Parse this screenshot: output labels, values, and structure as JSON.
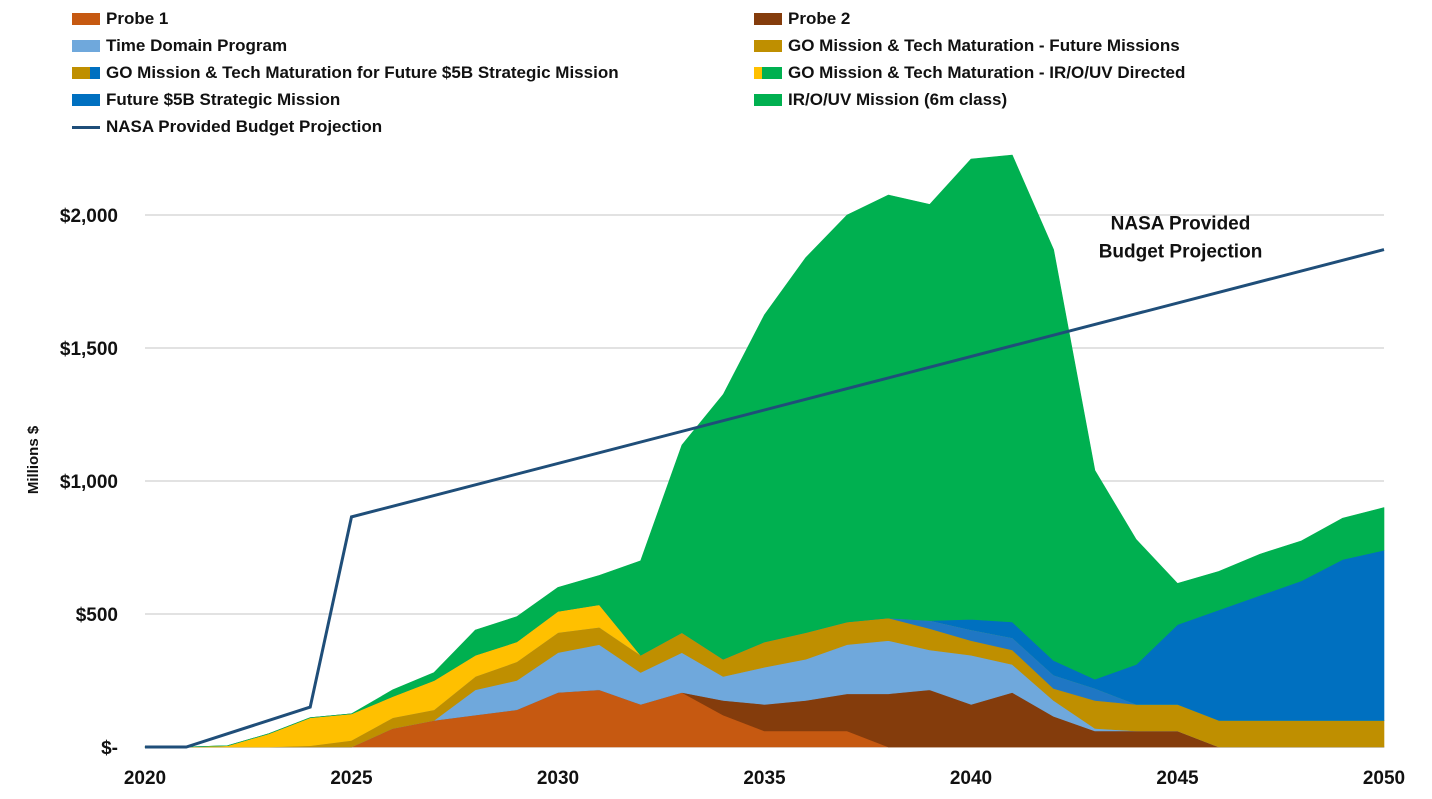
{
  "chart_data": {
    "type": "area",
    "stacked": true,
    "title": "",
    "xlabel": "",
    "ylabel": "Millions $",
    "xlim": [
      2020,
      2050
    ],
    "ylim": [
      0,
      2250
    ],
    "grid": true,
    "legend_position": "top",
    "x_ticks": [
      2020,
      2025,
      2030,
      2035,
      2040,
      2045,
      2050
    ],
    "x_tick_labels": [
      "2020",
      "2025",
      "2030",
      "2035",
      "2040",
      "2045",
      "2050"
    ],
    "y_ticks": [
      0,
      500,
      1000,
      1500,
      2000
    ],
    "y_tick_labels": [
      "$-",
      "$500",
      "$1,000",
      "$1,500",
      "$2,000"
    ],
    "x": [
      2020,
      2021,
      2022,
      2023,
      2024,
      2025,
      2026,
      2027,
      2028,
      2029,
      2030,
      2031,
      2032,
      2033,
      2034,
      2035,
      2036,
      2037,
      2038,
      2039,
      2040,
      2041,
      2042,
      2043,
      2044,
      2045,
      2046,
      2047,
      2048,
      2049,
      2050
    ],
    "series": [
      {
        "name": "Probe 1",
        "color": "#C65911",
        "values": [
          0,
          0,
          0,
          0,
          0,
          0,
          70,
          100,
          120,
          140,
          205,
          215,
          160,
          205,
          120,
          60,
          60,
          60,
          0,
          0,
          0,
          0,
          0,
          0,
          0,
          0,
          0,
          0,
          0,
          0,
          0
        ]
      },
      {
        "name": "Probe 2",
        "color": "#843C0C",
        "values": [
          0,
          0,
          0,
          0,
          0,
          0,
          0,
          0,
          0,
          0,
          0,
          0,
          0,
          0,
          55,
          100,
          115,
          140,
          200,
          215,
          160,
          205,
          115,
          60,
          60,
          60,
          0,
          0,
          0,
          0,
          0
        ]
      },
      {
        "name": "Time Domain Program",
        "color": "#6FA8DC",
        "values": [
          0,
          0,
          0,
          0,
          0,
          0,
          0,
          0,
          95,
          110,
          150,
          170,
          120,
          150,
          90,
          140,
          155,
          185,
          200,
          150,
          185,
          105,
          60,
          10,
          0,
          0,
          0,
          0,
          0,
          0,
          0
        ]
      },
      {
        "name": "GO Mission & Tech Maturation -  Future Missions",
        "color": "#BF8F00",
        "values": [
          0,
          0,
          0,
          0,
          5,
          25,
          40,
          40,
          50,
          70,
          75,
          65,
          65,
          75,
          65,
          95,
          100,
          85,
          85,
          80,
          55,
          55,
          45,
          105,
          100,
          100,
          100,
          100,
          100,
          100,
          100
        ]
      },
      {
        "name": "GO Mission & Tech Maturation for Future $5B Strategic Mission",
        "color": "#C9A227",
        "color2": "#1F77C4",
        "values": [
          0,
          0,
          0,
          0,
          0,
          0,
          0,
          0,
          0,
          0,
          0,
          0,
          0,
          0,
          0,
          0,
          0,
          0,
          0,
          30,
          40,
          45,
          50,
          45,
          0,
          0,
          0,
          0,
          0,
          0,
          0
        ]
      },
      {
        "name": "GO Mission & Tech Maturation - IR/O/UV Directed",
        "color": "#FFC000",
        "color2": "#6CBF2E",
        "values": [
          0,
          0,
          5,
          50,
          105,
          100,
          80,
          110,
          80,
          75,
          80,
          85,
          0,
          0,
          0,
          0,
          0,
          0,
          0,
          0,
          0,
          0,
          0,
          0,
          0,
          0,
          0,
          0,
          0,
          0,
          0
        ]
      },
      {
        "name": "Future $5B Strategic Mission",
        "color": "#0070C0",
        "values": [
          0,
          0,
          0,
          0,
          0,
          0,
          0,
          0,
          0,
          0,
          0,
          0,
          0,
          0,
          0,
          0,
          0,
          0,
          0,
          0,
          40,
          60,
          55,
          35,
          150,
          300,
          415,
          470,
          525,
          605,
          640
        ]
      },
      {
        "name": "IR/O/UV Mission (6m class)",
        "color": "#00B050",
        "values": [
          0,
          0,
          0,
          0,
          0,
          0,
          25,
          30,
          95,
          95,
          90,
          110,
          355,
          705,
          995,
          1230,
          1410,
          1530,
          1590,
          1565,
          1730,
          1755,
          1545,
          785,
          470,
          155,
          145,
          155,
          150,
          155,
          160
        ]
      }
    ],
    "line_series": {
      "name": "NASA Provided Budget Projection",
      "color": "#1F4E79",
      "x": [
        2020,
        2021,
        2024,
        2025,
        2050
      ],
      "values": [
        0,
        0,
        150,
        865,
        1870
      ]
    },
    "annotations": [
      {
        "text_lines": [
          "NASA Provided",
          "Budget Projection"
        ],
        "x": 2045,
        "y": 1950
      }
    ]
  },
  "legend": {
    "items": [
      {
        "label": "Probe 1",
        "swatch": [
          "#C65911"
        ]
      },
      {
        "label": "Probe 2",
        "swatch": [
          "#843C0C"
        ]
      },
      {
        "label": "Time Domain Program",
        "swatch": [
          "#6FA8DC"
        ]
      },
      {
        "label": "GO Mission & Tech Maturation -  Future Missions",
        "swatch": [
          "#BF8F00"
        ]
      },
      {
        "label": "GO Mission & Tech Maturation for Future $5B Strategic Mission",
        "swatch": [
          "#BF8F00",
          "#0070C0"
        ]
      },
      {
        "label": "GO Mission & Tech Maturation - IR/O/UV Directed",
        "swatch": [
          "#FFC000",
          "#00B050"
        ]
      },
      {
        "label": "Future $5B Strategic Mission",
        "swatch": [
          "#0070C0"
        ]
      },
      {
        "label": "IR/O/UV Mission (6m class)",
        "swatch": [
          "#00B050"
        ]
      },
      {
        "label": "NASA Provided Budget Projection",
        "swatch": [
          "#1F4E79"
        ],
        "line": true
      }
    ]
  }
}
